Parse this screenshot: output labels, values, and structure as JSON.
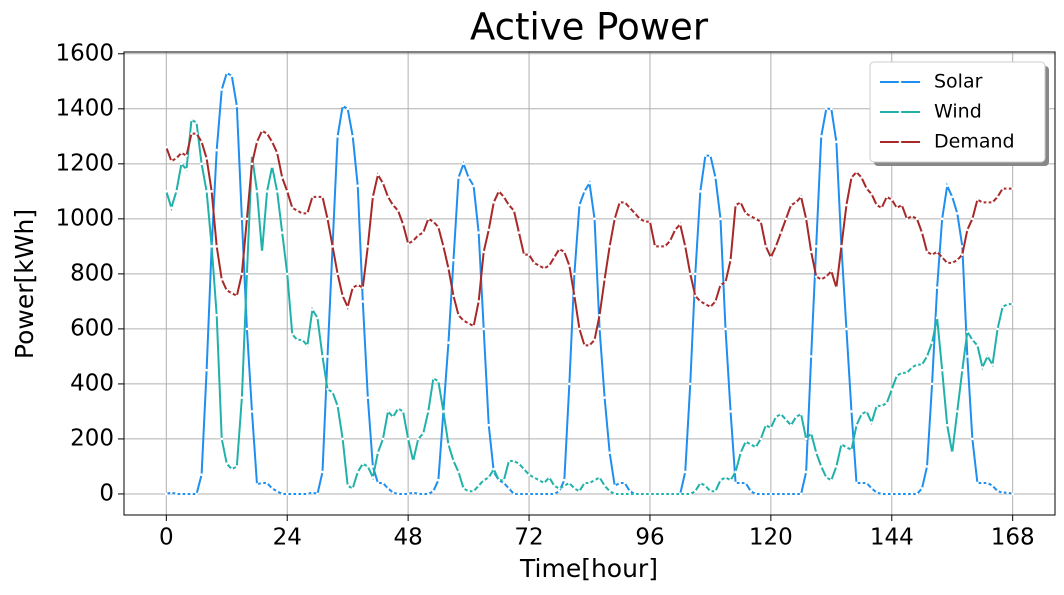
{
  "chart_data": {
    "type": "line",
    "title": "Active Power",
    "xlabel": "Time[hour]",
    "ylabel": "Power[kWh]",
    "x": [
      0,
      1,
      2,
      3,
      4,
      5,
      6,
      7,
      8,
      9,
      10,
      11,
      12,
      13,
      14,
      15,
      16,
      17,
      18,
      19,
      20,
      21,
      22,
      23,
      24,
      25,
      26,
      27,
      28,
      29,
      30,
      31,
      32,
      33,
      34,
      35,
      36,
      37,
      38,
      39,
      40,
      41,
      42,
      43,
      44,
      45,
      46,
      47,
      48,
      49,
      50,
      51,
      52,
      53,
      54,
      55,
      56,
      57,
      58,
      59,
      60,
      61,
      62,
      63,
      64,
      65,
      66,
      67,
      68,
      69,
      70,
      71,
      72,
      73,
      74,
      75,
      76,
      77,
      78,
      79,
      80,
      81,
      82,
      83,
      84,
      85,
      86,
      87,
      88,
      89,
      90,
      91,
      92,
      93,
      94,
      95,
      96,
      97,
      98,
      99,
      100,
      101,
      102,
      103,
      104,
      105,
      106,
      107,
      108,
      109,
      110,
      111,
      112,
      113,
      114,
      115,
      116,
      117,
      118,
      119,
      120,
      121,
      122,
      123,
      124,
      125,
      126,
      127,
      128,
      129,
      130,
      131,
      132,
      133,
      134,
      135,
      136,
      137,
      138,
      139,
      140,
      141,
      142,
      143,
      144,
      145,
      146,
      147,
      148,
      149,
      150,
      151,
      152,
      153,
      154,
      155,
      156,
      157,
      158,
      159,
      160,
      161,
      162,
      163,
      164,
      165,
      166,
      167,
      168
    ],
    "series": [
      {
        "name": "Solar",
        "color": "#1e8fef",
        "values": [
          0,
          5,
          0,
          0,
          0,
          0,
          0,
          70,
          450,
          900,
          1250,
          1470,
          1530,
          1520,
          1410,
          1000,
          600,
          300,
          35,
          40,
          40,
          20,
          10,
          0,
          0,
          0,
          0,
          0,
          0,
          5,
          0,
          80,
          500,
          900,
          1300,
          1410,
          1400,
          1300,
          1120,
          700,
          350,
          100,
          40,
          40,
          20,
          5,
          0,
          0,
          0,
          5,
          0,
          0,
          0,
          10,
          50,
          300,
          550,
          850,
          1150,
          1200,
          1150,
          1120,
          950,
          600,
          250,
          80,
          50,
          40,
          20,
          0,
          0,
          0,
          0,
          0,
          0,
          0,
          0,
          0,
          10,
          50,
          400,
          800,
          1050,
          1100,
          1130,
          1000,
          600,
          350,
          150,
          30,
          40,
          40,
          10,
          0,
          0,
          0,
          0,
          0,
          0,
          0,
          0,
          0,
          0,
          80,
          400,
          800,
          1100,
          1230,
          1230,
          1150,
          1000,
          600,
          300,
          40,
          40,
          40,
          10,
          0,
          0,
          0,
          0,
          0,
          0,
          0,
          0,
          0,
          0,
          80,
          500,
          900,
          1300,
          1400,
          1400,
          1280,
          900,
          600,
          300,
          40,
          40,
          40,
          20,
          5,
          0,
          0,
          0,
          0,
          0,
          0,
          0,
          0,
          20,
          100,
          400,
          750,
          1000,
          1120,
          1080,
          1020,
          900,
          500,
          200,
          40,
          40,
          40,
          30,
          10,
          5,
          5,
          0
        ]
      },
      {
        "name": "Wind",
        "color": "#20b2aa",
        "values": [
          1100,
          1040,
          1100,
          1200,
          1180,
          1360,
          1350,
          1200,
          1100,
          900,
          650,
          200,
          110,
          90,
          100,
          350,
          800,
          1230,
          1100,
          880,
          1100,
          1190,
          1100,
          950,
          800,
          580,
          560,
          560,
          540,
          670,
          640,
          500,
          380,
          370,
          320,
          200,
          30,
          20,
          80,
          110,
          100,
          60,
          150,
          200,
          300,
          280,
          310,
          300,
          200,
          120,
          200,
          220,
          300,
          420,
          410,
          300,
          180,
          120,
          80,
          20,
          10,
          10,
          30,
          50,
          60,
          90,
          50,
          50,
          120,
          120,
          110,
          90,
          70,
          60,
          50,
          40,
          60,
          30,
          20,
          30,
          40,
          20,
          10,
          40,
          40,
          50,
          60,
          30,
          10,
          0,
          0,
          0,
          0,
          0,
          0,
          0,
          0,
          0,
          0,
          0,
          0,
          0,
          0,
          0,
          0,
          10,
          40,
          30,
          10,
          10,
          50,
          60,
          50,
          80,
          150,
          190,
          180,
          170,
          200,
          250,
          240,
          280,
          290,
          270,
          250,
          280,
          290,
          200,
          220,
          150,
          100,
          60,
          50,
          100,
          180,
          170,
          160,
          250,
          290,
          300,
          260,
          320,
          320,
          330,
          380,
          430,
          440,
          440,
          460,
          470,
          470,
          500,
          550,
          640,
          450,
          250,
          150,
          300,
          450,
          590,
          560,
          540,
          460,
          500,
          470,
          600,
          680,
          690,
          690
        ]
      },
      {
        "name": "Demand",
        "color": "#a82828",
        "values": [
          1260,
          1210,
          1220,
          1240,
          1230,
          1310,
          1310,
          1280,
          1220,
          1100,
          900,
          780,
          740,
          730,
          720,
          800,
          1000,
          1200,
          1280,
          1320,
          1310,
          1280,
          1240,
          1150,
          1100,
          1040,
          1030,
          1020,
          1020,
          1080,
          1080,
          1080,
          1000,
          900,
          800,
          720,
          680,
          750,
          760,
          750,
          900,
          1080,
          1160,
          1130,
          1080,
          1050,
          1030,
          980,
          910,
          920,
          940,
          950,
          1000,
          990,
          970,
          900,
          820,
          720,
          650,
          630,
          620,
          610,
          700,
          880,
          960,
          1060,
          1100,
          1080,
          1050,
          1030,
          950,
          870,
          870,
          840,
          830,
          820,
          830,
          860,
          890,
          880,
          830,
          720,
          600,
          540,
          540,
          560,
          650,
          780,
          900,
          1000,
          1060,
          1060,
          1040,
          1020,
          1000,
          990,
          990,
          900,
          900,
          900,
          920,
          960,
          980,
          900,
          800,
          720,
          700,
          690,
          680,
          700,
          760,
          770,
          850,
          1050,
          1060,
          1020,
          1010,
          1000,
          990,
          900,
          860,
          900,
          950,
          1000,
          1050,
          1060,
          1080,
          1000,
          880,
          790,
          780,
          790,
          810,
          750,
          900,
          1050,
          1150,
          1170,
          1150,
          1110,
          1090,
          1050,
          1040,
          1080,
          1070,
          1040,
          1050,
          1000,
          1010,
          1000,
          950,
          880,
          870,
          880,
          860,
          840,
          840,
          850,
          870,
          960,
          1000,
          1070,
          1060,
          1060,
          1060,
          1080,
          1110,
          1110,
          1110
        ]
      }
    ],
    "xlim": [
      -8.4,
      176.4
    ],
    "xticks": [
      0,
      24,
      48,
      72,
      96,
      120,
      144,
      168
    ],
    "ylim": [
      -76.5,
      1606.5
    ],
    "yticks": [
      0,
      200,
      400,
      600,
      800,
      1000,
      1200,
      1400,
      1600
    ],
    "grid": true,
    "legend": "upper right"
  }
}
